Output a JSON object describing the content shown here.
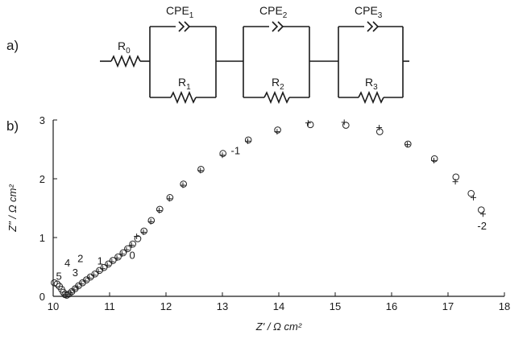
{
  "panel_a": {
    "label": "a)",
    "components": {
      "r0": "R",
      "r0_sub": "0",
      "cpe1": "CPE",
      "cpe1_sub": "1",
      "r1": "R",
      "r1_sub": "1",
      "cpe2": "CPE",
      "cpe2_sub": "2",
      "r2": "R",
      "r2_sub": "2",
      "cpe3": "CPE",
      "cpe3_sub": "3",
      "r3": "R",
      "r3_sub": "3"
    }
  },
  "panel_b": {
    "label": "b)"
  },
  "chart_data": {
    "type": "scatter",
    "xlabel": "Z' / Ω cm²",
    "ylabel": "Z\" / Ω cm²",
    "xlim": [
      10,
      18
    ],
    "ylim": [
      0,
      3
    ],
    "xticks": [
      10,
      11,
      12,
      13,
      14,
      15,
      16,
      17,
      18
    ],
    "yticks": [
      0,
      1,
      2,
      3
    ],
    "series": [
      {
        "marker": "circle",
        "points": [
          [
            10.02,
            0.23
          ],
          [
            10.07,
            0.21
          ],
          [
            10.11,
            0.17
          ],
          [
            10.15,
            0.12
          ],
          [
            10.18,
            0.07
          ],
          [
            10.21,
            0.03
          ],
          [
            10.24,
            0.02
          ],
          [
            10.28,
            0.04
          ],
          [
            10.33,
            0.08
          ],
          [
            10.39,
            0.13
          ],
          [
            10.45,
            0.18
          ],
          [
            10.52,
            0.23
          ],
          [
            10.59,
            0.28
          ],
          [
            10.66,
            0.33
          ],
          [
            10.74,
            0.38
          ],
          [
            10.82,
            0.44
          ],
          [
            10.9,
            0.49
          ],
          [
            10.98,
            0.55
          ],
          [
            11.06,
            0.61
          ],
          [
            11.15,
            0.67
          ],
          [
            11.24,
            0.74
          ],
          [
            11.32,
            0.81
          ],
          [
            11.41,
            0.89
          ],
          [
            11.5,
            0.98
          ],
          [
            11.61,
            1.11
          ],
          [
            11.74,
            1.29
          ],
          [
            11.89,
            1.48
          ],
          [
            12.07,
            1.68
          ],
          [
            12.31,
            1.91
          ],
          [
            12.62,
            2.16
          ],
          [
            13.01,
            2.43
          ],
          [
            13.46,
            2.66
          ],
          [
            13.98,
            2.83
          ],
          [
            14.56,
            2.92
          ],
          [
            15.19,
            2.91
          ],
          [
            15.79,
            2.8
          ],
          [
            16.29,
            2.59
          ],
          [
            16.76,
            2.34
          ],
          [
            17.14,
            2.03
          ],
          [
            17.41,
            1.75
          ],
          [
            17.59,
            1.47
          ]
        ]
      },
      {
        "marker": "plus",
        "points": [
          [
            10.22,
            0.03
          ],
          [
            10.26,
            0.03
          ],
          [
            10.31,
            0.06
          ],
          [
            10.37,
            0.11
          ],
          [
            10.43,
            0.16
          ],
          [
            10.5,
            0.21
          ],
          [
            10.57,
            0.26
          ],
          [
            10.64,
            0.31
          ],
          [
            10.72,
            0.36
          ],
          [
            10.8,
            0.42
          ],
          [
            10.88,
            0.47
          ],
          [
            10.96,
            0.53
          ],
          [
            11.04,
            0.59
          ],
          [
            11.13,
            0.65
          ],
          [
            11.22,
            0.72
          ],
          [
            11.3,
            0.79
          ],
          [
            11.39,
            0.87
          ],
          [
            11.48,
            1.02
          ],
          [
            11.6,
            1.09
          ],
          [
            11.73,
            1.27
          ],
          [
            11.88,
            1.46
          ],
          [
            12.06,
            1.66
          ],
          [
            12.3,
            1.89
          ],
          [
            12.61,
            2.14
          ],
          [
            13.0,
            2.4
          ],
          [
            13.45,
            2.64
          ],
          [
            13.97,
            2.8
          ],
          [
            14.52,
            2.95
          ],
          [
            15.16,
            2.96
          ],
          [
            15.78,
            2.87
          ],
          [
            16.28,
            2.58
          ],
          [
            16.75,
            2.31
          ],
          [
            17.13,
            1.95
          ],
          [
            17.45,
            1.68
          ],
          [
            17.62,
            1.4
          ]
        ]
      }
    ],
    "annotations": [
      {
        "text": "5",
        "x": 10.05,
        "y": 0.28
      },
      {
        "text": "4",
        "x": 10.2,
        "y": 0.51
      },
      {
        "text": "3",
        "x": 10.34,
        "y": 0.34
      },
      {
        "text": "2",
        "x": 10.43,
        "y": 0.58
      },
      {
        "text": "1",
        "x": 10.78,
        "y": 0.54
      },
      {
        "text": "0",
        "x": 11.35,
        "y": 0.64
      },
      {
        "text": "-1",
        "x": 13.15,
        "y": 2.42
      },
      {
        "text": "-2",
        "x": 17.52,
        "y": 1.14
      }
    ]
  }
}
